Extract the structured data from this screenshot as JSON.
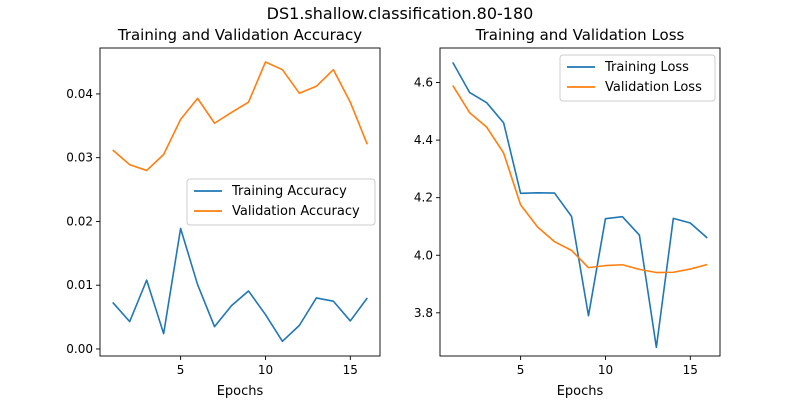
{
  "figure": {
    "suptitle": "DS1.shallow.classification.80-180"
  },
  "chart_data": [
    {
      "type": "line",
      "title": "Training and Validation Accuracy",
      "xlabel": "Epochs",
      "ylabel": "",
      "xlim": [
        0.25,
        16.75
      ],
      "ylim": [
        -0.0011,
        0.0472
      ],
      "xticks": [
        5,
        10,
        15
      ],
      "yticks": [
        0.0,
        0.01,
        0.02,
        0.03,
        0.04
      ],
      "ytick_labels": [
        "0.00",
        "0.01",
        "0.02",
        "0.03",
        "0.04"
      ],
      "grid": false,
      "legend_position": "center-right",
      "x": [
        1,
        2,
        3,
        4,
        5,
        6,
        7,
        8,
        9,
        10,
        11,
        12,
        13,
        14,
        15,
        16
      ],
      "series": [
        {
          "name": "Training Accuracy",
          "color": "#1f77b4",
          "values": [
            0.0073,
            0.0043,
            0.0108,
            0.0024,
            0.0189,
            0.0101,
            0.0035,
            0.0068,
            0.0091,
            0.0054,
            0.0012,
            0.0037,
            0.008,
            0.0075,
            0.0044,
            0.008
          ]
        },
        {
          "name": "Validation Accuracy",
          "color": "#ff7f0e",
          "values": [
            0.0312,
            0.0289,
            0.028,
            0.0305,
            0.036,
            0.0393,
            0.0354,
            0.0371,
            0.0387,
            0.045,
            0.0438,
            0.0401,
            0.0412,
            0.0438,
            0.0387,
            0.0321
          ]
        }
      ]
    },
    {
      "type": "line",
      "title": "Training and Validation Loss",
      "xlabel": "Epochs",
      "ylabel": "",
      "xlim": [
        0.25,
        16.75
      ],
      "ylim": [
        3.65,
        4.72
      ],
      "xticks": [
        5,
        10,
        15
      ],
      "yticks": [
        3.8,
        4.0,
        4.2,
        4.4,
        4.6
      ],
      "ytick_labels": [
        "3.8",
        "4.0",
        "4.2",
        "4.4",
        "4.6"
      ],
      "grid": false,
      "legend_position": "top-right",
      "x": [
        1,
        2,
        3,
        4,
        5,
        6,
        7,
        8,
        9,
        10,
        11,
        12,
        13,
        14,
        15,
        16
      ],
      "series": [
        {
          "name": "Training Loss",
          "color": "#1f77b4",
          "values": [
            4.67,
            4.565,
            4.53,
            4.46,
            4.215,
            4.217,
            4.216,
            4.135,
            3.79,
            4.127,
            4.134,
            4.07,
            3.68,
            4.128,
            4.112,
            4.06
          ]
        },
        {
          "name": "Validation Loss",
          "color": "#ff7f0e",
          "values": [
            4.59,
            4.495,
            4.445,
            4.355,
            4.175,
            4.098,
            4.047,
            4.017,
            3.957,
            3.964,
            3.967,
            3.951,
            3.94,
            3.941,
            3.952,
            3.968
          ]
        }
      ]
    }
  ]
}
